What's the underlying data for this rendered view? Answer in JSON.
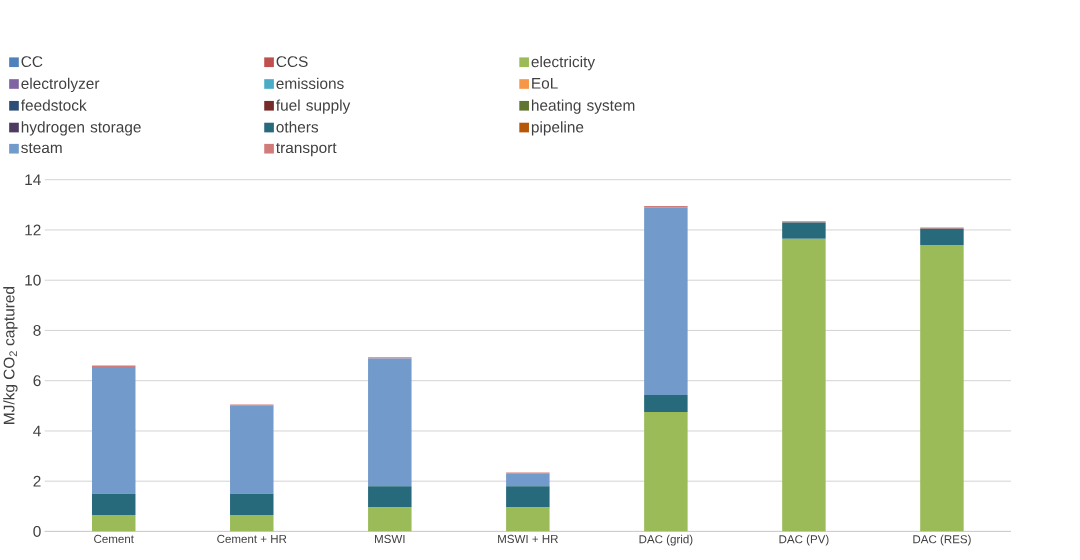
{
  "chart_data": {
    "type": "bar",
    "stacked": true,
    "ylabel": "MJ/kg CO$_{2}$ captured",
    "categories": [
      "Cement",
      "Cement + HR",
      "MSWI",
      "MSWI + HR",
      "DAC (grid)",
      "DAC (PV)",
      "DAC (RES)"
    ],
    "ylim": [
      0,
      14
    ],
    "yticks": [
      0,
      2,
      4,
      6,
      8,
      10,
      12,
      14
    ],
    "grid": "y",
    "legend": "top",
    "series": [
      {
        "name": "CC",
        "color": "#4f81bd",
        "values": [
          0,
          0,
          0,
          0,
          0,
          0,
          0
        ]
      },
      {
        "name": "CCS",
        "color": "#c0504d",
        "values": [
          0,
          0,
          0,
          0,
          0,
          0,
          0
        ]
      },
      {
        "name": "electricity",
        "color": "#9bbb59",
        "values": [
          0.65,
          0.65,
          0.95,
          0.95,
          4.75,
          11.65,
          11.4
        ]
      },
      {
        "name": "electrolyzer",
        "color": "#8064a2",
        "values": [
          0,
          0,
          0,
          0,
          0,
          0,
          0
        ]
      },
      {
        "name": "emissions",
        "color": "#4bacc6",
        "values": [
          0,
          0,
          0,
          0,
          0,
          0,
          0
        ]
      },
      {
        "name": "EoL",
        "color": "#f79646",
        "values": [
          0,
          0,
          0,
          0,
          0,
          0,
          0
        ]
      },
      {
        "name": "feedstock",
        "color": "#2c4d75",
        "values": [
          0,
          0,
          0,
          0,
          0,
          0,
          0
        ]
      },
      {
        "name": "fuel supply",
        "color": "#772c2a",
        "values": [
          0,
          0,
          0,
          0,
          0,
          0,
          0
        ]
      },
      {
        "name": "heating system",
        "color": "#5f7530",
        "values": [
          0,
          0,
          0,
          0,
          0,
          0,
          0
        ]
      },
      {
        "name": "hydrogen storage",
        "color": "#4d3b62",
        "values": [
          0,
          0,
          0,
          0,
          0,
          0,
          0
        ]
      },
      {
        "name": "others",
        "color": "#276a7c",
        "values": [
          0.85,
          0.85,
          0.85,
          0.85,
          0.68,
          0.65,
          0.65
        ]
      },
      {
        "name": "pipeline",
        "color": "#b65708",
        "values": [
          0,
          0,
          0,
          0,
          0,
          0,
          0
        ]
      },
      {
        "name": "steam",
        "color": "#729aca",
        "values": [
          5.05,
          3.5,
          5.08,
          0.5,
          7.47,
          0,
          0
        ]
      },
      {
        "name": "transport",
        "color": "#d07c7b",
        "values": [
          0.05,
          0.05,
          0.05,
          0.05,
          0.05,
          0.05,
          0.05
        ]
      }
    ]
  }
}
